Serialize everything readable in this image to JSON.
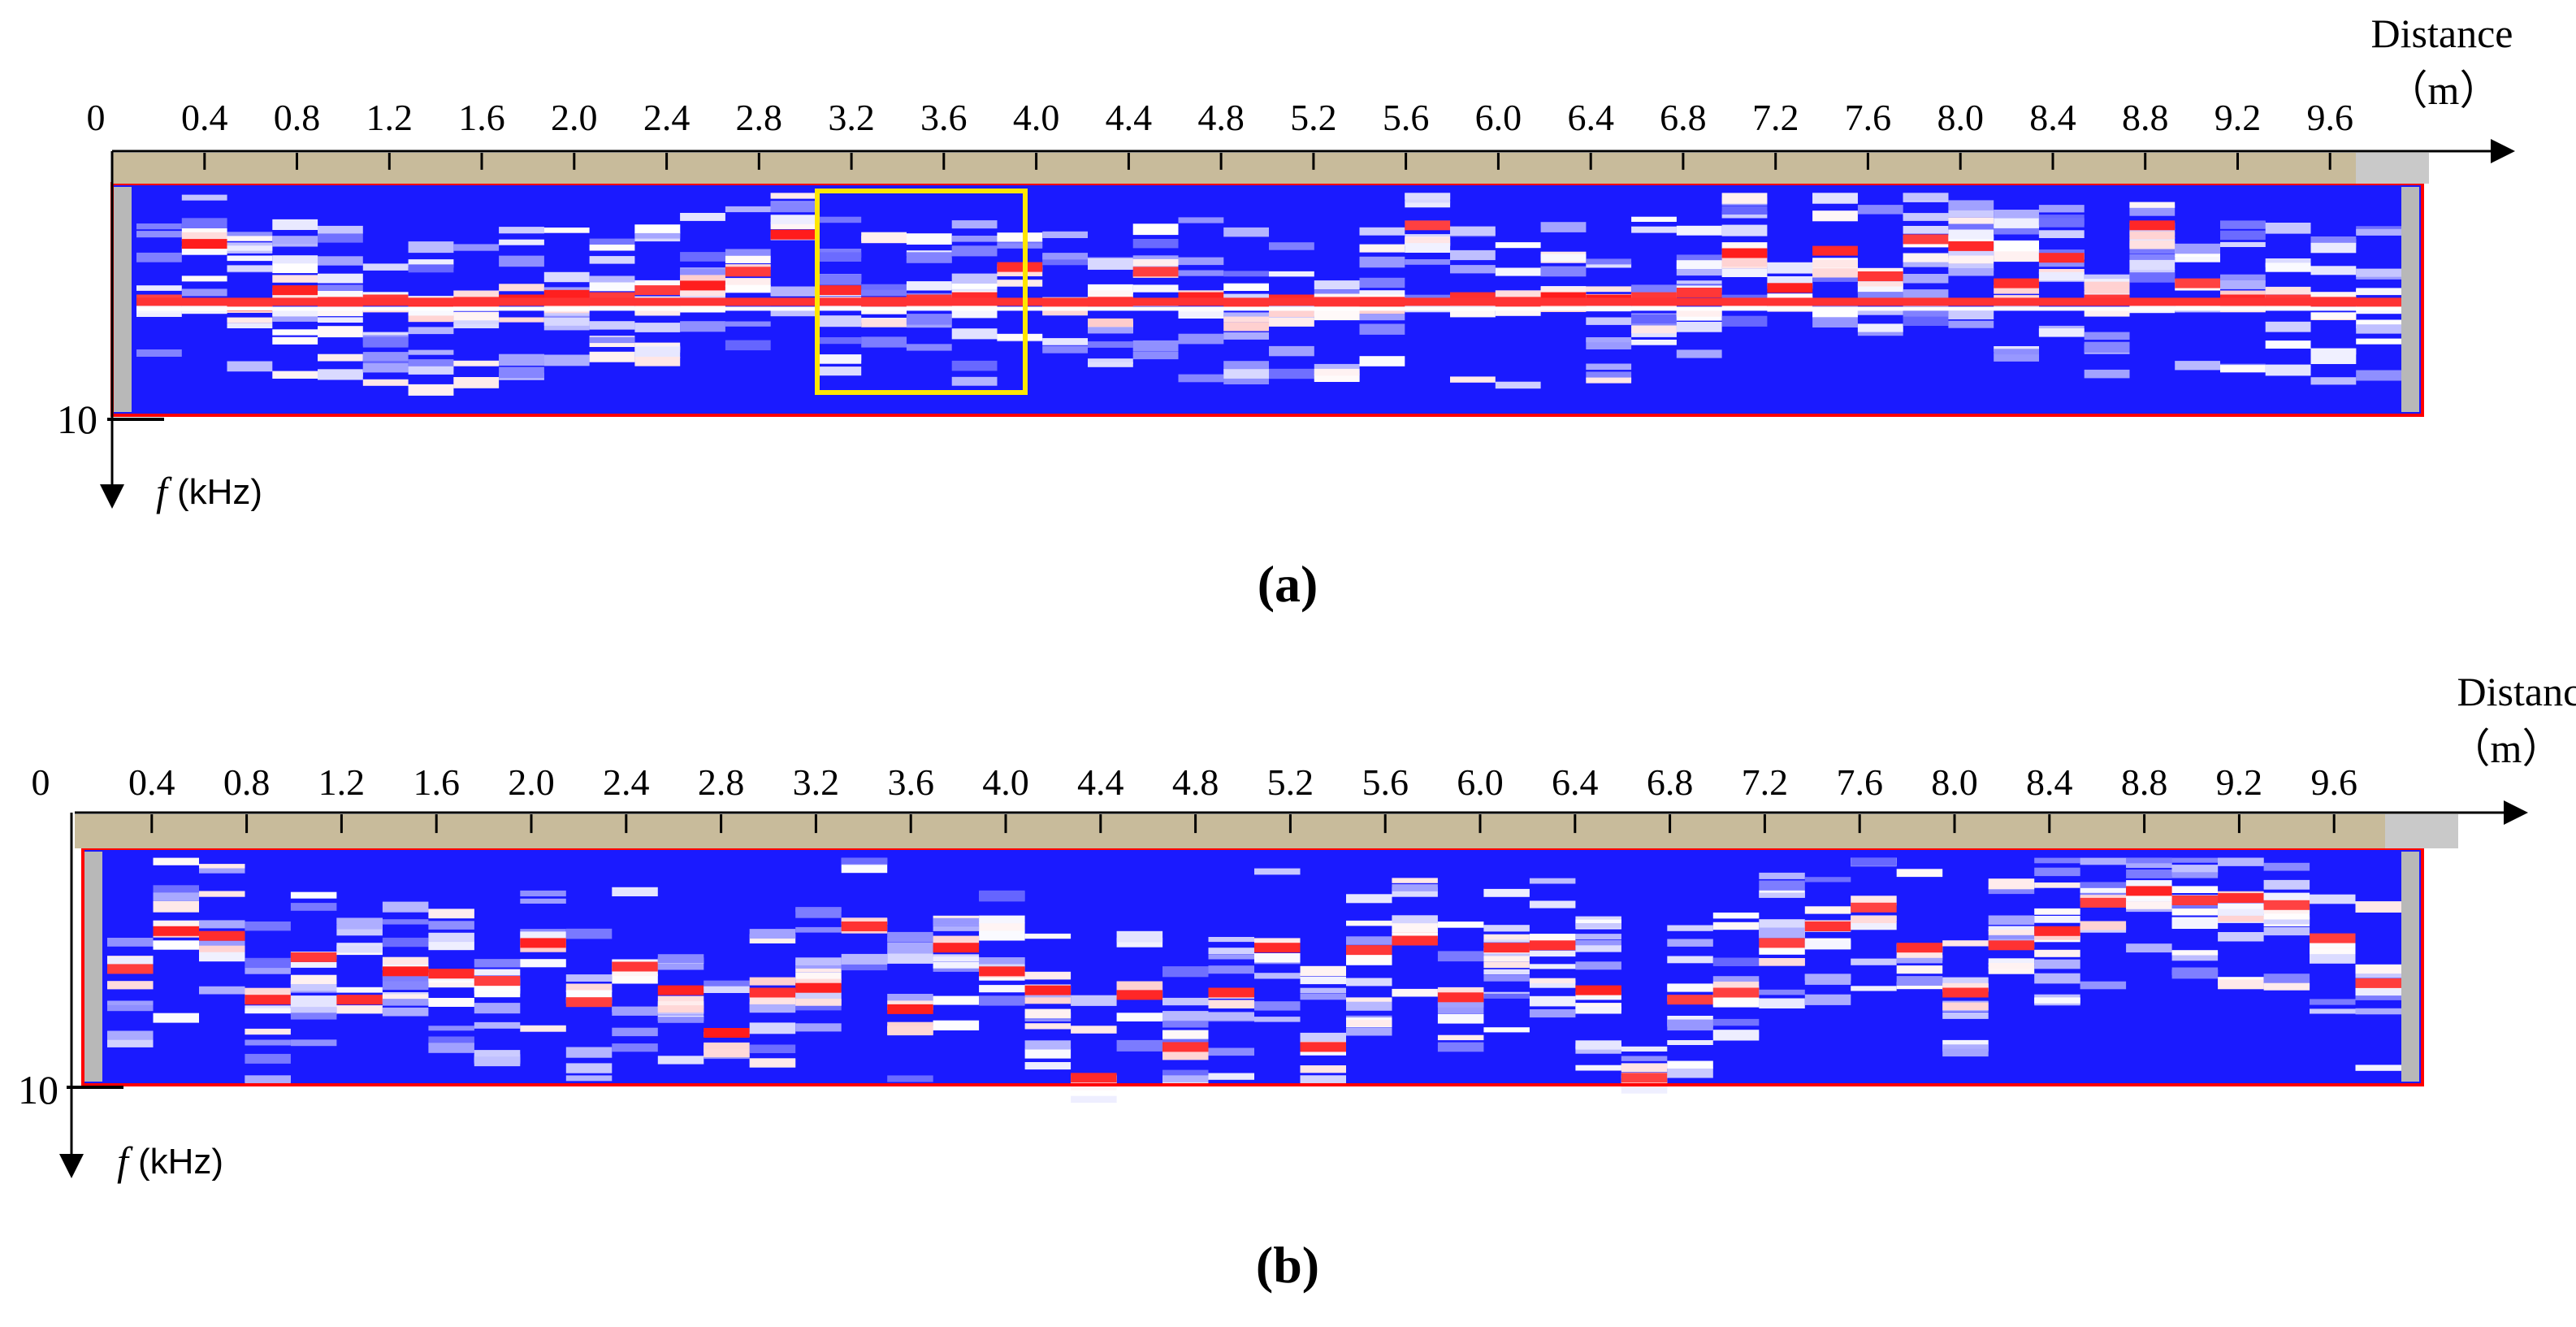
{
  "axis": {
    "distance_label": "Distance",
    "distance_unit": "（m）",
    "freq_var": "f",
    "freq_unit": "(kHz)",
    "freq_max": "10",
    "origin": "0"
  },
  "panels": [
    {
      "id": "a",
      "caption": "(a)"
    },
    {
      "id": "b",
      "caption": "(b)"
    }
  ],
  "colors": {
    "background": "#1a1aff",
    "high": "#ff1a1a",
    "mid": "#ffffff",
    "ruler": "#c8bb9b",
    "frame": "#ff0000",
    "end_cap": "#b8b8b8",
    "highlight_box": "#ffe600"
  },
  "chart_data": [
    {
      "type": "heatmap",
      "panel": "a",
      "xlabel": "Distance（m）",
      "ylabel": "f (kHz)",
      "x_ticks": [
        "0",
        "0.4",
        "0.8",
        "1.2",
        "1.6",
        "2.0",
        "2.4",
        "2.8",
        "3.2",
        "3.6",
        "4.0",
        "4.4",
        "4.8",
        "5.2",
        "5.6",
        "6.0",
        "6.4",
        "6.8",
        "7.2",
        "7.6",
        "8.0",
        "8.4",
        "8.8",
        "9.2",
        "9.6"
      ],
      "xlim": [
        0,
        10
      ],
      "ylim": [
        0,
        10
      ],
      "column_width_m": 0.2,
      "main_band_khz": 5.1,
      "peaks_khz": [
        5.0,
        2.6,
        5.3,
        4.6,
        5.1,
        5.0,
        5.2,
        5.1,
        5.0,
        4.8,
        4.9,
        4.6,
        4.4,
        3.8,
        2.2,
        4.6,
        5.1,
        5.0,
        4.9,
        3.6,
        5.2,
        5.1,
        3.8,
        4.9,
        5.2,
        5.0,
        5.1,
        5.1,
        1.8,
        4.9,
        5.1,
        4.9,
        5.0,
        4.9,
        4.7,
        3.0,
        4.5,
        2.9,
        4.0,
        2.4,
        2.7,
        4.3,
        3.2,
        5.0,
        1.8,
        4.3,
        5.0,
        5.0,
        5.1,
        5.2
      ],
      "highlight": {
        "x_start_m": 3.0,
        "x_end_m": 3.9,
        "f_start_khz": 0.3,
        "f_end_khz": 9.1
      }
    },
    {
      "type": "heatmap",
      "panel": "b",
      "xlabel": "Distance（m）",
      "ylabel": "f (kHz)",
      "x_ticks": [
        "0",
        "0.4",
        "0.8",
        "1.2",
        "1.6",
        "2.0",
        "2.4",
        "2.8",
        "3.2",
        "3.6",
        "4.0",
        "4.4",
        "4.8",
        "5.2",
        "5.6",
        "6.0",
        "6.4",
        "6.8",
        "7.2",
        "7.6",
        "8.0",
        "8.4",
        "8.8",
        "9.2",
        "9.6"
      ],
      "xlim": [
        0,
        10
      ],
      "ylim": [
        0,
        10
      ],
      "column_width_m": 0.2,
      "peaks_khz": [
        5.1,
        3.5,
        3.7,
        6.4,
        4.6,
        6.4,
        5.2,
        5.3,
        5.6,
        4.0,
        6.5,
        5.0,
        6.0,
        7.8,
        6.1,
        5.9,
        3.3,
        6.8,
        4.2,
        5.2,
        6.0,
        9.7,
        6.2,
        8.4,
        6.1,
        4.2,
        8.4,
        4.3,
        3.9,
        6.3,
        4.2,
        4.1,
        6.0,
        9.7,
        6.4,
        6.1,
        4.0,
        3.3,
        2.5,
        4.2,
        6.1,
        4.1,
        3.5,
        2.3,
        1.8,
        2.2,
        2.1,
        2.4,
        3.8,
        5.7
      ]
    }
  ]
}
